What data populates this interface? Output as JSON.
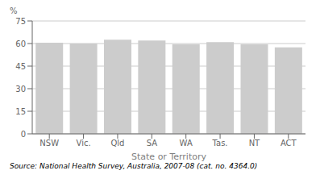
{
  "chart_data": {
    "type": "bar",
    "categories": [
      "NSW",
      "Vic.",
      "Qld",
      "SA",
      "WA",
      "Tas.",
      "NT",
      "ACT"
    ],
    "values": [
      60.5,
      60.0,
      62.5,
      62.0,
      59.5,
      61.0,
      59.5,
      57.5
    ],
    "color": "#cccccc",
    "ylabel": "%",
    "xlabel": "State or Territory",
    "ylim": [
      0,
      75
    ],
    "yticks": [
      0,
      15,
      30,
      45,
      60,
      75
    ],
    "grid": true,
    "annotations": [
      "Source: National Health Survey, Australia, 2007-08 (cat. no. 4364.0)"
    ]
  }
}
